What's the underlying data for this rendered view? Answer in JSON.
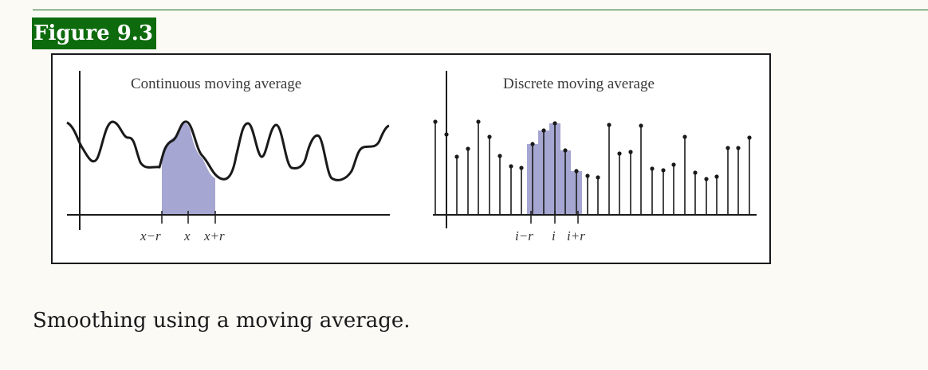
{
  "figure": {
    "label": "Figure 9.3",
    "caption": "Smoothing using a moving average."
  },
  "left_panel": {
    "title": "Continuous moving average",
    "ticks": [
      "x−r",
      "x",
      "x+r"
    ]
  },
  "right_panel": {
    "title": "Discrete moving average",
    "ticks": [
      "i−r",
      "i",
      "i+r"
    ]
  },
  "colors": {
    "label_bg": "#0d6b0d",
    "shade": "#a6a6d2",
    "ink": "#1a1a1a"
  }
}
